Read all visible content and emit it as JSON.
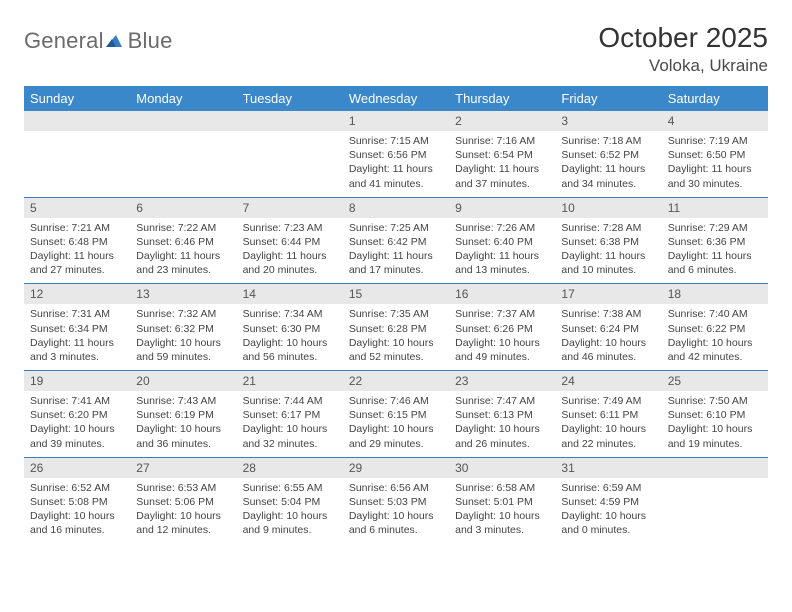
{
  "logo": {
    "text_general": "General",
    "text_blue": "Blue"
  },
  "title": {
    "month": "October 2025",
    "location": "Voloka, Ukraine"
  },
  "colors": {
    "header_bg": "#3a87c9",
    "header_text": "#ffffff",
    "daynum_bg": "#e8e8e8",
    "border": "#3a7cbf",
    "body_text": "#444444",
    "logo_gray": "#6b6b6b",
    "logo_blue": "#3a7cbf"
  },
  "day_headers": [
    "Sunday",
    "Monday",
    "Tuesday",
    "Wednesday",
    "Thursday",
    "Friday",
    "Saturday"
  ],
  "weeks": [
    [
      null,
      null,
      null,
      {
        "n": "1",
        "sunrise": "7:15 AM",
        "sunset": "6:56 PM",
        "daylight": "11 hours and 41 minutes."
      },
      {
        "n": "2",
        "sunrise": "7:16 AM",
        "sunset": "6:54 PM",
        "daylight": "11 hours and 37 minutes."
      },
      {
        "n": "3",
        "sunrise": "7:18 AM",
        "sunset": "6:52 PM",
        "daylight": "11 hours and 34 minutes."
      },
      {
        "n": "4",
        "sunrise": "7:19 AM",
        "sunset": "6:50 PM",
        "daylight": "11 hours and 30 minutes."
      }
    ],
    [
      {
        "n": "5",
        "sunrise": "7:21 AM",
        "sunset": "6:48 PM",
        "daylight": "11 hours and 27 minutes."
      },
      {
        "n": "6",
        "sunrise": "7:22 AM",
        "sunset": "6:46 PM",
        "daylight": "11 hours and 23 minutes."
      },
      {
        "n": "7",
        "sunrise": "7:23 AM",
        "sunset": "6:44 PM",
        "daylight": "11 hours and 20 minutes."
      },
      {
        "n": "8",
        "sunrise": "7:25 AM",
        "sunset": "6:42 PM",
        "daylight": "11 hours and 17 minutes."
      },
      {
        "n": "9",
        "sunrise": "7:26 AM",
        "sunset": "6:40 PM",
        "daylight": "11 hours and 13 minutes."
      },
      {
        "n": "10",
        "sunrise": "7:28 AM",
        "sunset": "6:38 PM",
        "daylight": "11 hours and 10 minutes."
      },
      {
        "n": "11",
        "sunrise": "7:29 AM",
        "sunset": "6:36 PM",
        "daylight": "11 hours and 6 minutes."
      }
    ],
    [
      {
        "n": "12",
        "sunrise": "7:31 AM",
        "sunset": "6:34 PM",
        "daylight": "11 hours and 3 minutes."
      },
      {
        "n": "13",
        "sunrise": "7:32 AM",
        "sunset": "6:32 PM",
        "daylight": "10 hours and 59 minutes."
      },
      {
        "n": "14",
        "sunrise": "7:34 AM",
        "sunset": "6:30 PM",
        "daylight": "10 hours and 56 minutes."
      },
      {
        "n": "15",
        "sunrise": "7:35 AM",
        "sunset": "6:28 PM",
        "daylight": "10 hours and 52 minutes."
      },
      {
        "n": "16",
        "sunrise": "7:37 AM",
        "sunset": "6:26 PM",
        "daylight": "10 hours and 49 minutes."
      },
      {
        "n": "17",
        "sunrise": "7:38 AM",
        "sunset": "6:24 PM",
        "daylight": "10 hours and 46 minutes."
      },
      {
        "n": "18",
        "sunrise": "7:40 AM",
        "sunset": "6:22 PM",
        "daylight": "10 hours and 42 minutes."
      }
    ],
    [
      {
        "n": "19",
        "sunrise": "7:41 AM",
        "sunset": "6:20 PM",
        "daylight": "10 hours and 39 minutes."
      },
      {
        "n": "20",
        "sunrise": "7:43 AM",
        "sunset": "6:19 PM",
        "daylight": "10 hours and 36 minutes."
      },
      {
        "n": "21",
        "sunrise": "7:44 AM",
        "sunset": "6:17 PM",
        "daylight": "10 hours and 32 minutes."
      },
      {
        "n": "22",
        "sunrise": "7:46 AM",
        "sunset": "6:15 PM",
        "daylight": "10 hours and 29 minutes."
      },
      {
        "n": "23",
        "sunrise": "7:47 AM",
        "sunset": "6:13 PM",
        "daylight": "10 hours and 26 minutes."
      },
      {
        "n": "24",
        "sunrise": "7:49 AM",
        "sunset": "6:11 PM",
        "daylight": "10 hours and 22 minutes."
      },
      {
        "n": "25",
        "sunrise": "7:50 AM",
        "sunset": "6:10 PM",
        "daylight": "10 hours and 19 minutes."
      }
    ],
    [
      {
        "n": "26",
        "sunrise": "6:52 AM",
        "sunset": "5:08 PM",
        "daylight": "10 hours and 16 minutes."
      },
      {
        "n": "27",
        "sunrise": "6:53 AM",
        "sunset": "5:06 PM",
        "daylight": "10 hours and 12 minutes."
      },
      {
        "n": "28",
        "sunrise": "6:55 AM",
        "sunset": "5:04 PM",
        "daylight": "10 hours and 9 minutes."
      },
      {
        "n": "29",
        "sunrise": "6:56 AM",
        "sunset": "5:03 PM",
        "daylight": "10 hours and 6 minutes."
      },
      {
        "n": "30",
        "sunrise": "6:58 AM",
        "sunset": "5:01 PM",
        "daylight": "10 hours and 3 minutes."
      },
      {
        "n": "31",
        "sunrise": "6:59 AM",
        "sunset": "4:59 PM",
        "daylight": "10 hours and 0 minutes."
      },
      null
    ]
  ],
  "labels": {
    "sunrise": "Sunrise:",
    "sunset": "Sunset:",
    "daylight": "Daylight:"
  }
}
